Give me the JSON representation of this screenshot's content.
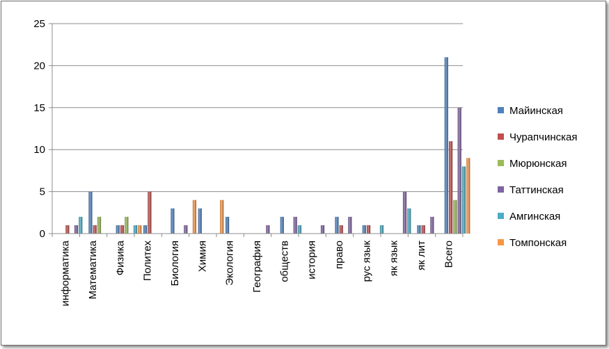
{
  "chart_data": {
    "type": "bar",
    "title": "",
    "xlabel": "",
    "ylabel": "",
    "ylim": [
      0,
      25
    ],
    "yticks": [
      0,
      5,
      10,
      15,
      20,
      25
    ],
    "grid": "horizontal",
    "legend_position": "right",
    "categories": [
      "информатика",
      "Математика",
      "Физика",
      "Политех",
      "Биология",
      "Химия",
      "Экология",
      "География",
      "обществ",
      "история",
      "право",
      "рус язык",
      "як язык",
      "як лит",
      "Всего"
    ],
    "series": [
      {
        "name": "Майинская",
        "color": "#4f81bd",
        "values": [
          0,
          5,
          1,
          1,
          3,
          3,
          2,
          0,
          2,
          0,
          2,
          1,
          0,
          1,
          21
        ]
      },
      {
        "name": "Чурапчинская",
        "color": "#c0504d",
        "values": [
          1,
          1,
          1,
          5,
          0,
          0,
          0,
          0,
          0,
          0,
          1,
          1,
          0,
          1,
          11
        ]
      },
      {
        "name": "Мюрюнская",
        "color": "#9bbb59",
        "values": [
          0,
          2,
          2,
          0,
          0,
          0,
          0,
          0,
          0,
          0,
          0,
          0,
          0,
          0,
          4
        ]
      },
      {
        "name": "Таттинская",
        "color": "#8064a2",
        "values": [
          1,
          0,
          0,
          0,
          1,
          0,
          0,
          1,
          2,
          1,
          2,
          0,
          5,
          2,
          15
        ]
      },
      {
        "name": "Амгинская",
        "color": "#4bacc6",
        "values": [
          2,
          0,
          1,
          0,
          0,
          0,
          0,
          0,
          1,
          0,
          0,
          1,
          3,
          0,
          8
        ]
      },
      {
        "name": "Томпонская",
        "color": "#f79646",
        "values": [
          0,
          0,
          1,
          0,
          4,
          4,
          0,
          0,
          0,
          0,
          0,
          0,
          0,
          0,
          9
        ]
      }
    ]
  }
}
